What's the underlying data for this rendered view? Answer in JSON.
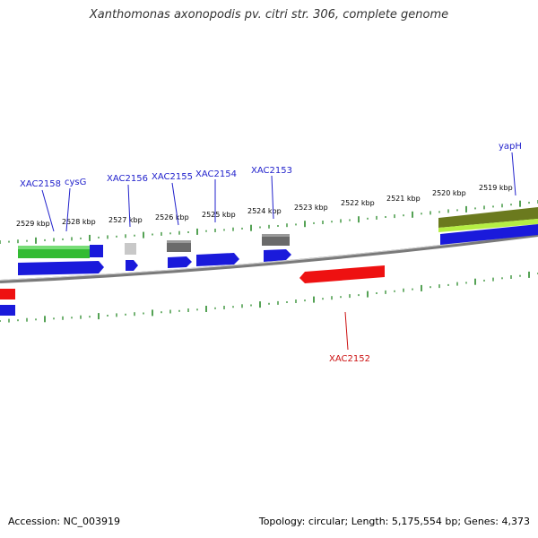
{
  "title": "Xanthomonas axonopodis pv. citri str. 306, complete genome",
  "footer": {
    "accession": "Accession: NC_003919",
    "summary": "Topology: circular; Length: 5,175,554 bp; Genes: 4,373"
  },
  "colors": {
    "forward_cds": "#1a1adb",
    "reverse_cds": "#ee1111",
    "green_feature": "#33bb33",
    "grey_feature": "#707070",
    "light_grey_feature": "#cccccc",
    "olive_feature": "#6b7a1e",
    "lime_feature": "#b5ee44",
    "backbone": "#888888",
    "tick": "#2a8a2a",
    "forward_label": "#2222cc",
    "reverse_label": "#cc1111"
  },
  "kbp_labels": [
    "2529 kbp",
    "2528 kbp",
    "2527 kbp",
    "2526 kbp",
    "2525 kbp",
    "2524 kbp",
    "2523 kbp",
    "2522 kbp",
    "2521 kbp",
    "2520 kbp",
    "2519 kbp"
  ],
  "gene_labels": [
    {
      "text": "XAC2158",
      "strand": "forward"
    },
    {
      "text": "cysG",
      "strand": "forward"
    },
    {
      "text": "XAC2156",
      "strand": "forward"
    },
    {
      "text": "XAC2155",
      "strand": "forward"
    },
    {
      "text": "XAC2154",
      "strand": "forward"
    },
    {
      "text": "XAC2153",
      "strand": "forward"
    },
    {
      "text": "yapH",
      "strand": "forward"
    },
    {
      "text": "XAC2152",
      "strand": "reverse"
    }
  ]
}
